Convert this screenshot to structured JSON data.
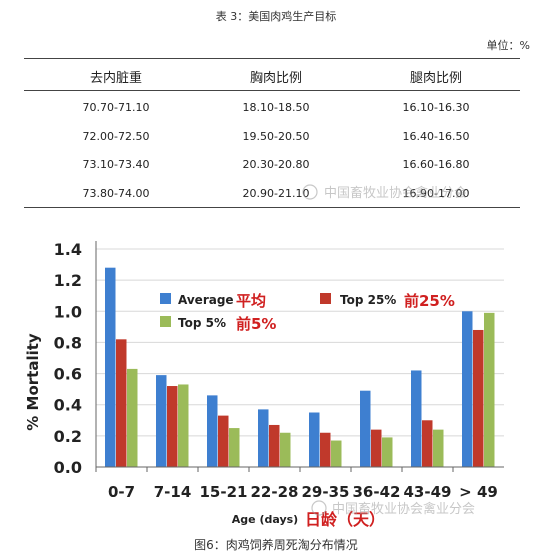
{
  "table": {
    "title": "表 3：美国肉鸡生产目标",
    "unit": "单位：%",
    "headers": [
      "去内脏重",
      "胸肉比例",
      "腿肉比例"
    ],
    "rows": [
      [
        "70.70-71.10",
        "18.10-18.50",
        "16.10-16.30"
      ],
      [
        "72.00-72.50",
        "19.50-20.50",
        "16.40-16.50"
      ],
      [
        "73.10-73.40",
        "20.30-20.80",
        "16.60-16.80"
      ],
      [
        "73.80-74.00",
        "20.90-21.10",
        "16.90-17.00"
      ]
    ]
  },
  "watermark": "中国畜牧业协会禽业分会",
  "chart_data": {
    "type": "bar",
    "categories": [
      "0-7",
      "7-14",
      "15-21",
      "22-28",
      "29-35",
      "36-42",
      "43-49",
      "> 49"
    ],
    "series": [
      {
        "name": "Average 平均",
        "color": "#3e7fd0",
        "values": [
          1.28,
          0.59,
          0.46,
          0.37,
          0.35,
          0.49,
          0.62,
          1.0
        ]
      },
      {
        "name": "Top 25% 前25%",
        "color": "#c0392b",
        "values": [
          0.82,
          0.52,
          0.33,
          0.27,
          0.22,
          0.24,
          0.3,
          0.88
        ]
      },
      {
        "name": "Top 5% 前5%",
        "color": "#9bbb59",
        "values": [
          0.63,
          0.53,
          0.25,
          0.22,
          0.17,
          0.19,
          0.24,
          0.99
        ]
      }
    ],
    "ylabel": "% Mortality",
    "xlabel": "Age (days)",
    "xlabel_cn": "日龄（天）",
    "ylim": [
      0,
      1.4
    ],
    "yticks": [
      "0.0",
      "0.2",
      "0.4",
      "0.6",
      "0.8",
      "1.0",
      "1.2",
      "1.4"
    ],
    "legend": [
      {
        "en": "Average",
        "cn": "平均"
      },
      {
        "en": "Top 25%",
        "cn": "前25%"
      },
      {
        "en": "Top 5%",
        "cn": "前5%"
      }
    ]
  },
  "caption": "图6：肉鸡饲养周死淘分布情况"
}
